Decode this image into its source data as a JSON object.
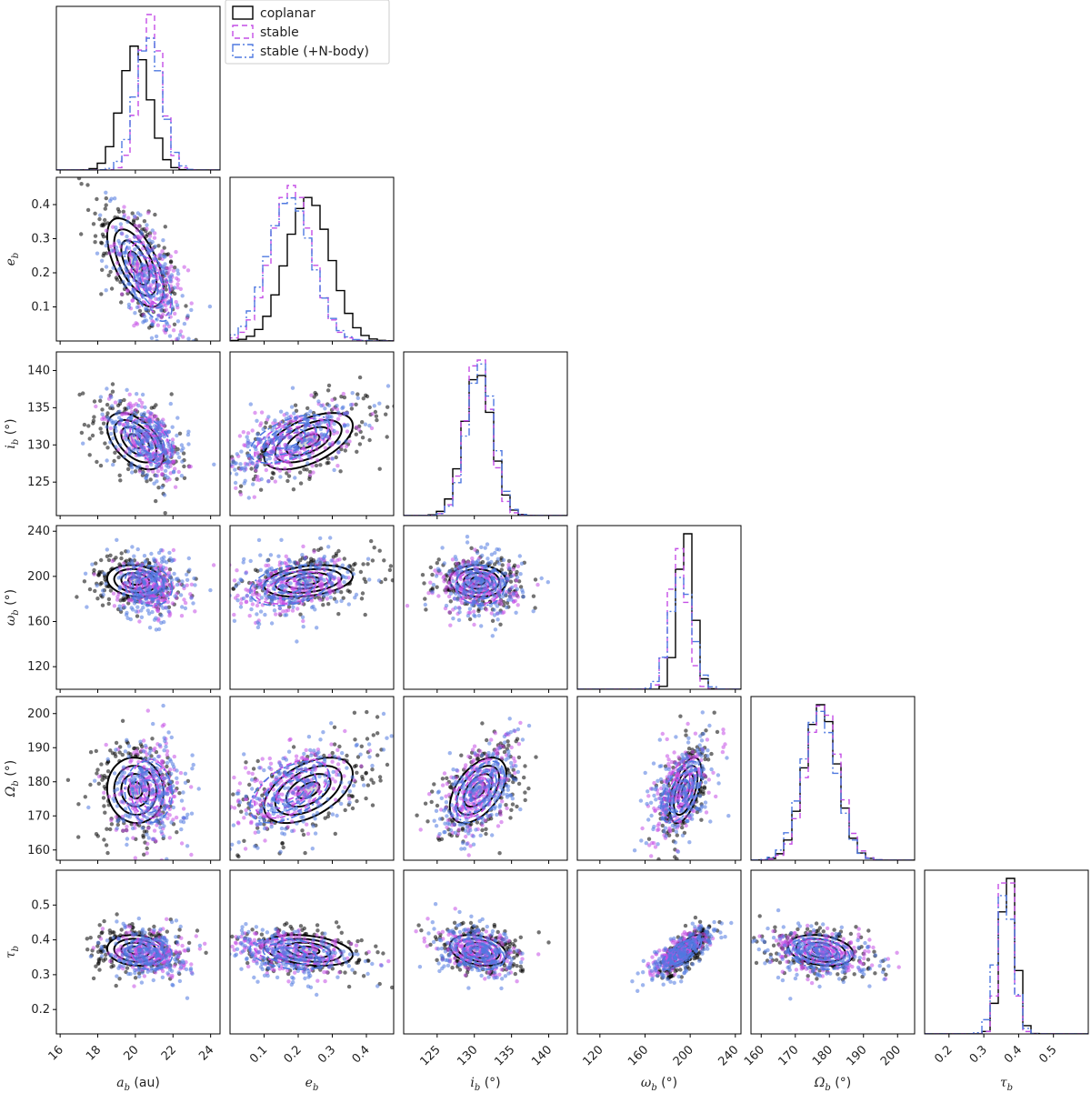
{
  "chart_data": {
    "type": "corner",
    "title": "",
    "legend": {
      "placement": "top-left-outside-upper-triangle",
      "entries": [
        {
          "label": "coplanar",
          "color": "#000000",
          "style": "solid"
        },
        {
          "label": "stable",
          "color": "#c44ee6",
          "style": "dashed"
        },
        {
          "label": "stable (+N-body)",
          "color": "#4f79e0",
          "style": "dashdot"
        }
      ]
    },
    "parameters": [
      {
        "key": "a",
        "label": "a_b (au)",
        "sym": "a",
        "unit": "(au)",
        "range": [
          15.8,
          24.5
        ],
        "ticks": [
          16,
          18,
          20,
          22,
          24
        ]
      },
      {
        "key": "e",
        "label": "e_b",
        "sym": "e",
        "unit": "",
        "range": [
          0.0,
          0.48
        ],
        "ticks": [
          0.1,
          0.2,
          0.3,
          0.4
        ]
      },
      {
        "key": "i",
        "label": "i_b (°)",
        "sym": "i",
        "unit": "(°)",
        "range": [
          120.5,
          142.5
        ],
        "ticks": [
          125,
          130,
          135,
          140
        ]
      },
      {
        "key": "w",
        "label": "ω_b (°)",
        "sym": "ω",
        "unit": "(°)",
        "range": [
          100,
          245
        ],
        "ticks": [
          120,
          160,
          200,
          240
        ]
      },
      {
        "key": "O",
        "label": "Ω_b (°)",
        "sym": "Ω",
        "unit": "(°)",
        "range": [
          157,
          205
        ],
        "ticks": [
          160,
          170,
          180,
          190,
          200
        ]
      },
      {
        "key": "t",
        "label": "τ_b",
        "sym": "τ",
        "unit": "",
        "range": [
          0.13,
          0.6
        ],
        "ticks": [
          0.2,
          0.3,
          0.4,
          0.5
        ]
      }
    ],
    "series": [
      {
        "name": "coplanar",
        "color": "#000000",
        "dash": "none",
        "mean": {
          "a": 20.0,
          "e": 0.23,
          "i": 130.5,
          "w": 196,
          "O": 177.5,
          "t": 0.37
        },
        "sd": {
          "a": 0.75,
          "e": 0.065,
          "i": 1.9,
          "w": 7,
          "O": 4.8,
          "t": 0.022
        }
      },
      {
        "name": "stable",
        "color": "#c44ee6",
        "dash": "6,4",
        "mean": {
          "a": 20.8,
          "e": 0.18,
          "i": 130.5,
          "w": 190,
          "O": 178.0,
          "t": 0.365
        },
        "sd": {
          "a": 0.6,
          "e": 0.06,
          "i": 1.7,
          "w": 8,
          "O": 4.8,
          "t": 0.02
        }
      },
      {
        "name": "stable (+N-body)",
        "color": "#4f79e0",
        "dash": "8,3,2,3",
        "mean": {
          "a": 20.7,
          "e": 0.175,
          "i": 130.8,
          "w": 192,
          "O": 177.0,
          "t": 0.36
        },
        "sd": {
          "a": 0.7,
          "e": 0.065,
          "i": 1.8,
          "w": 10,
          "O": 5.0,
          "t": 0.025
        }
      }
    ],
    "correlations": {
      "a|e": -0.6,
      "a|i": -0.5,
      "a|w": -0.15,
      "a|O": -0.05,
      "a|t": -0.1,
      "e|i": 0.55,
      "e|w": 0.3,
      "e|O": 0.5,
      "e|t": -0.3,
      "i|w": -0.05,
      "i|O": 0.5,
      "i|t": -0.3,
      "w|O": 0.55,
      "w|t": 0.75,
      "O|t": -0.25
    }
  }
}
